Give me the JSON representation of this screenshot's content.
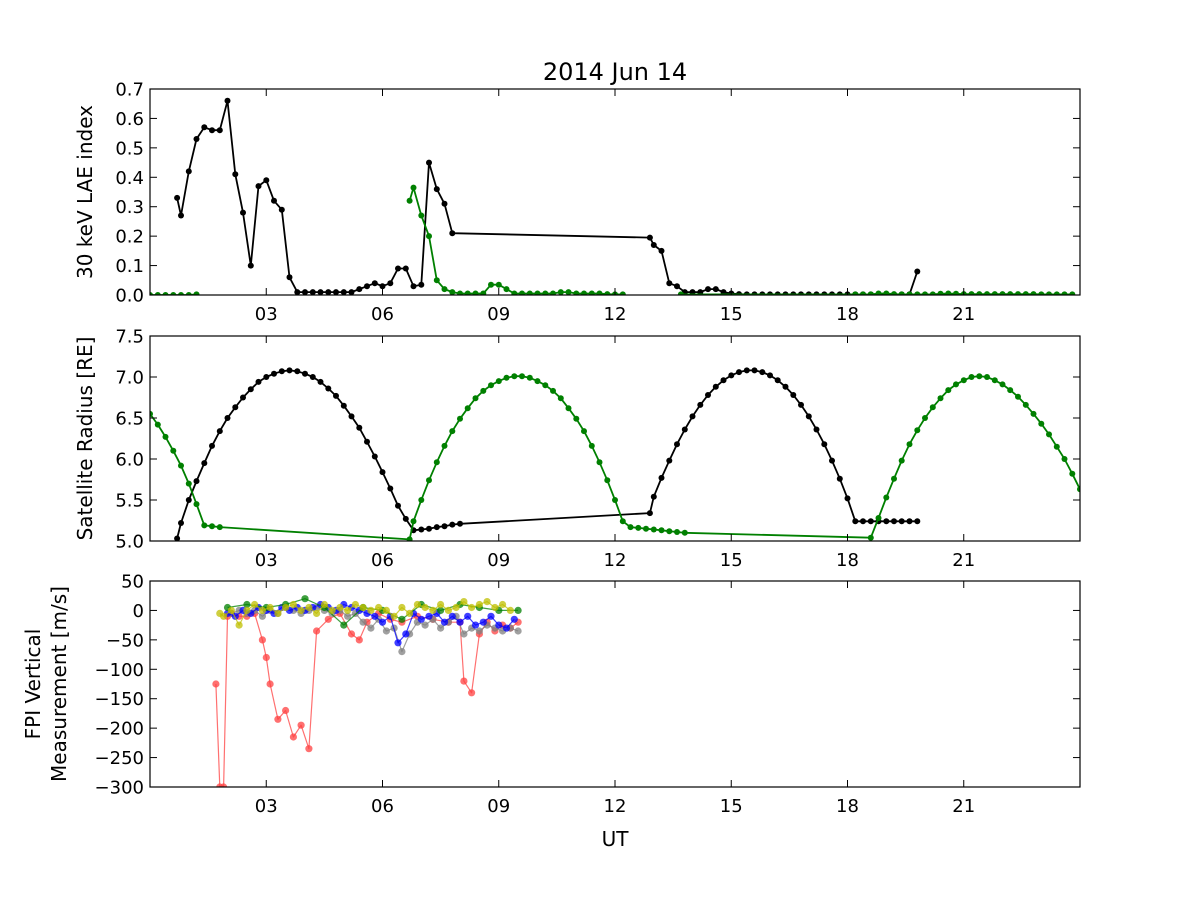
{
  "figure": {
    "title": "2014 Jun 14",
    "xlabel": "UT"
  },
  "chart_data": [
    {
      "type": "line",
      "ylabel": "30 keV LAE index",
      "xlim": [
        0,
        24
      ],
      "ylim": [
        0,
        0.7
      ],
      "xticks": [
        3,
        6,
        9,
        12,
        15,
        18,
        21
      ],
      "xticklabels": [
        "03",
        "06",
        "09",
        "12",
        "15",
        "18",
        "21"
      ],
      "yticks": [
        0,
        0.1,
        0.2,
        0.3,
        0.4,
        0.5,
        0.6,
        0.7
      ],
      "yticklabels": [
        "0.0",
        "0.1",
        "0.2",
        "0.3",
        "0.4",
        "0.5",
        "0.6",
        "0.7"
      ],
      "series": [
        {
          "color": "#000000",
          "x": [
            0.7,
            0.8,
            1.0,
            1.2,
            1.4,
            1.6,
            1.8,
            2.0,
            2.2,
            2.4,
            2.6,
            2.8,
            3.0,
            3.2,
            3.4,
            3.6,
            3.8,
            4.0,
            4.2,
            4.4,
            4.6,
            4.8,
            5.0,
            5.2,
            5.4,
            5.6,
            5.8,
            6.0,
            6.2,
            6.4,
            6.6,
            6.8,
            7.0,
            7.2,
            7.4,
            7.6,
            7.8,
            12.9,
            13.0,
            13.2,
            13.4,
            13.6,
            13.8,
            14.0,
            14.2,
            14.4,
            14.6,
            14.8,
            15.0,
            15.2,
            15.4,
            15.6,
            15.8,
            16.0,
            16.2,
            16.4,
            16.6,
            16.8,
            17.0,
            17.2,
            17.4,
            17.6,
            17.8,
            18.0,
            18.2,
            18.4,
            18.6,
            18.8,
            19.0,
            19.2,
            19.4,
            19.6,
            19.8
          ],
          "y": [
            0.33,
            0.27,
            0.42,
            0.53,
            0.57,
            0.56,
            0.56,
            0.66,
            0.41,
            0.28,
            0.1,
            0.37,
            0.39,
            0.32,
            0.29,
            0.06,
            0.01,
            0.01,
            0.01,
            0.01,
            0.01,
            0.01,
            0.01,
            0.01,
            0.02,
            0.03,
            0.04,
            0.03,
            0.04,
            0.09,
            0.09,
            0.03,
            0.035,
            0.45,
            0.36,
            0.31,
            0.21,
            0.195,
            0.17,
            0.15,
            0.04,
            0.03,
            0.01,
            0.01,
            0.01,
            0.02,
            0.02,
            0.01,
            0.005,
            0.003,
            0.002,
            0.002,
            0.002,
            0.002,
            0.002,
            0.002,
            0.002,
            0.002,
            0.002,
            0.002,
            0.002,
            0.002,
            0.002,
            0.002,
            0.002,
            0.002,
            0.002,
            0.002,
            0.002,
            0.002,
            0.002,
            0.002,
            0.08
          ]
        },
        {
          "color": "#008000",
          "segments": [
            {
              "x": [
                0.0,
                0.2,
                0.4,
                0.6,
                0.8,
                1.0,
                1.2
              ],
              "y": [
                0.0,
                0.0,
                0.0,
                0.0,
                0.0,
                0.0,
                0.002
              ]
            },
            {
              "x": [
                6.7,
                6.8,
                7.0,
                7.2,
                7.4,
                7.6,
                7.8,
                8.0,
                8.2,
                8.4,
                8.6,
                8.8,
                9.0,
                9.2,
                9.4,
                9.6,
                9.8,
                10.0,
                10.2,
                10.4,
                10.6,
                10.8,
                11.0,
                11.2,
                11.4,
                11.6,
                11.8,
                12.0,
                12.2
              ],
              "y": [
                0.32,
                0.365,
                0.27,
                0.2,
                0.05,
                0.02,
                0.01,
                0.005,
                0.005,
                0.005,
                0.005,
                0.035,
                0.035,
                0.02,
                0.005,
                0.005,
                0.005,
                0.005,
                0.005,
                0.005,
                0.01,
                0.01,
                0.005,
                0.005,
                0.005,
                0.005,
                0.003,
                0.002,
                0.002
              ]
            },
            {
              "x": [
                13.7,
                18.2,
                18.4,
                18.6,
                18.8,
                19.0,
                19.2,
                19.4,
                19.6,
                19.8,
                20.0,
                20.2,
                20.4,
                20.6,
                20.8,
                21.0,
                21.2,
                21.4,
                21.6,
                21.8,
                22.0,
                22.2,
                22.4,
                22.6,
                22.8,
                23.0,
                23.2,
                23.4,
                23.6,
                23.8
              ],
              "y": [
                0.002,
                0.002,
                0.002,
                0.002,
                0.005,
                0.005,
                0.003,
                0.002,
                0.002,
                0.002,
                0.002,
                0.002,
                0.004,
                0.005,
                0.004,
                0.003,
                0.003,
                0.003,
                0.003,
                0.003,
                0.003,
                0.003,
                0.003,
                0.003,
                0.003,
                0.002,
                0.002,
                0.002,
                0.002,
                0.002
              ]
            }
          ]
        }
      ]
    },
    {
      "type": "line",
      "ylabel": "Satellite Radius [RE]",
      "xlim": [
        0,
        24
      ],
      "ylim": [
        5.0,
        7.5
      ],
      "xticks": [
        3,
        6,
        9,
        12,
        15,
        18,
        21
      ],
      "xticklabels": [
        "03",
        "06",
        "09",
        "12",
        "15",
        "18",
        "21"
      ],
      "yticks": [
        5.0,
        5.5,
        6.0,
        6.5,
        7.0,
        7.5
      ],
      "yticklabels": [
        "5.0",
        "5.5",
        "6.0",
        "6.5",
        "7.0",
        "7.5"
      ],
      "series": [
        {
          "color": "#000000",
          "x": [
            0.7,
            0.8,
            1.0,
            1.2,
            1.4,
            1.6,
            1.8,
            2.0,
            2.2,
            2.4,
            2.6,
            2.8,
            3.0,
            3.2,
            3.4,
            3.6,
            3.8,
            4.0,
            4.2,
            4.4,
            4.6,
            4.8,
            5.0,
            5.2,
            5.4,
            5.6,
            5.8,
            6.0,
            6.2,
            6.4,
            6.6,
            6.8,
            7.0,
            7.2,
            7.4,
            7.6,
            7.8,
            8.0,
            12.9,
            13.0,
            13.2,
            13.4,
            13.6,
            13.8,
            14.0,
            14.2,
            14.4,
            14.6,
            14.8,
            15.0,
            15.2,
            15.4,
            15.6,
            15.8,
            16.0,
            16.2,
            16.4,
            16.6,
            16.8,
            17.0,
            17.2,
            17.4,
            17.6,
            17.8,
            18.0,
            18.2,
            18.4,
            18.6,
            18.8,
            19.0,
            19.2,
            19.4,
            19.6,
            19.8
          ],
          "y": [
            5.03,
            5.22,
            5.5,
            5.73,
            5.95,
            6.16,
            6.34,
            6.5,
            6.63,
            6.75,
            6.85,
            6.94,
            7.0,
            7.04,
            7.07,
            7.08,
            7.07,
            7.04,
            7.0,
            6.94,
            6.86,
            6.77,
            6.65,
            6.52,
            6.38,
            6.21,
            6.03,
            5.84,
            5.64,
            5.43,
            5.27,
            5.13,
            5.14,
            5.15,
            5.17,
            5.18,
            5.2,
            5.21,
            5.34,
            5.54,
            5.77,
            5.98,
            6.18,
            6.36,
            6.52,
            6.66,
            6.78,
            6.88,
            6.96,
            7.02,
            7.06,
            7.08,
            7.08,
            7.06,
            7.02,
            6.96,
            6.88,
            6.78,
            6.66,
            6.52,
            6.36,
            6.18,
            5.98,
            5.76,
            5.52,
            5.24,
            5.24,
            5.24,
            5.24,
            5.24,
            5.24,
            5.24,
            5.24,
            5.24
          ]
        },
        {
          "color": "#008000",
          "x": [
            0.0,
            0.2,
            0.4,
            0.6,
            0.8,
            1.0,
            1.2,
            1.4,
            1.6,
            1.8,
            6.7,
            6.8,
            7.0,
            7.2,
            7.4,
            7.6,
            7.8,
            8.0,
            8.2,
            8.4,
            8.6,
            8.8,
            9.0,
            9.2,
            9.4,
            9.6,
            9.8,
            10.0,
            10.2,
            10.4,
            10.6,
            10.8,
            11.0,
            11.2,
            11.4,
            11.6,
            11.8,
            12.0,
            12.2,
            12.4,
            12.6,
            12.8,
            13.0,
            13.2,
            13.4,
            13.6,
            13.8,
            18.6,
            18.8,
            19.0,
            19.2,
            19.4,
            19.6,
            19.8,
            20.0,
            20.2,
            20.4,
            20.6,
            20.8,
            21.0,
            21.2,
            21.4,
            21.6,
            21.8,
            22.0,
            22.2,
            22.4,
            22.6,
            22.8,
            23.0,
            23.2,
            23.4,
            23.6,
            23.8,
            24.0
          ],
          "y": [
            6.55,
            6.42,
            6.27,
            6.1,
            5.92,
            5.7,
            5.45,
            5.19,
            5.18,
            5.17,
            5.02,
            5.24,
            5.5,
            5.74,
            5.96,
            6.16,
            6.34,
            6.49,
            6.62,
            6.74,
            6.83,
            6.9,
            6.95,
            6.99,
            7.01,
            7.01,
            6.99,
            6.95,
            6.9,
            6.83,
            6.74,
            6.62,
            6.49,
            6.34,
            6.16,
            5.96,
            5.74,
            5.5,
            5.24,
            5.17,
            5.16,
            5.15,
            5.14,
            5.13,
            5.12,
            5.11,
            5.1,
            5.04,
            5.28,
            5.53,
            5.76,
            5.98,
            6.18,
            6.35,
            6.5,
            6.63,
            6.74,
            6.84,
            6.91,
            6.96,
            7.0,
            7.01,
            7.0,
            6.96,
            6.91,
            6.84,
            6.76,
            6.66,
            6.55,
            6.43,
            6.3,
            6.15,
            6.0,
            5.82,
            5.63
          ]
        }
      ]
    },
    {
      "type": "line",
      "ylabel": "FPI Vertical Measurement [m/s]",
      "xlim": [
        0,
        24
      ],
      "ylim": [
        -300,
        50
      ],
      "xticks": [
        3,
        6,
        9,
        12,
        15,
        18,
        21
      ],
      "xticklabels": [
        "03",
        "06",
        "09",
        "12",
        "15",
        "18",
        "21"
      ],
      "yticks": [
        -300,
        -250,
        -200,
        -150,
        -100,
        -50,
        0,
        50
      ],
      "yticklabels": [
        "−300",
        "−250",
        "−200",
        "−150",
        "−100",
        "−50",
        "0",
        "50"
      ],
      "series": [
        {
          "color": "#ff4040",
          "x": [
            1.7,
            1.8,
            1.9,
            2.0,
            2.1,
            2.3,
            2.5,
            2.7,
            2.9,
            3.0,
            3.1,
            3.3,
            3.5,
            3.7,
            3.9,
            4.1,
            4.3,
            4.6,
            4.9,
            5.2,
            5.4,
            5.6,
            5.9,
            6.2,
            6.5,
            6.9,
            7.3,
            7.7,
            8.0,
            8.1,
            8.3,
            8.5,
            8.7,
            8.9,
            9.1,
            9.3,
            9.5
          ],
          "y": [
            -125,
            -300,
            -300,
            -10,
            -5,
            -10,
            -10,
            -5,
            -50,
            -80,
            -125,
            -185,
            -170,
            -215,
            -195,
            -235,
            -35,
            -15,
            -5,
            -40,
            -50,
            -20,
            -5,
            -15,
            -20,
            -10,
            -15,
            -20,
            -20,
            -120,
            -140,
            -40,
            -20,
            -35,
            -25,
            -30,
            -20
          ]
        },
        {
          "color": "#808080",
          "x": [
            2.1,
            2.3,
            2.5,
            2.7,
            2.9,
            3.1,
            3.3,
            3.5,
            3.7,
            3.9,
            4.1,
            4.3,
            4.5,
            4.7,
            4.9,
            5.1,
            5.3,
            5.5,
            5.7,
            5.9,
            6.1,
            6.3,
            6.5,
            6.7,
            6.9,
            7.1,
            7.3,
            7.5,
            7.7,
            7.9,
            8.1,
            8.3,
            8.5,
            8.7,
            8.9,
            9.1,
            9.3,
            9.5
          ],
          "y": [
            -5,
            0,
            -5,
            0,
            -10,
            0,
            -5,
            5,
            0,
            -5,
            0,
            5,
            0,
            -5,
            0,
            -10,
            -5,
            -20,
            -30,
            -15,
            -35,
            -30,
            -70,
            -40,
            -20,
            -25,
            -15,
            -30,
            -20,
            -10,
            -40,
            -30,
            -35,
            -25,
            -30,
            -35,
            -30,
            -35
          ]
        },
        {
          "color": "#0000ff",
          "x": [
            2.0,
            2.2,
            2.4,
            2.6,
            2.8,
            3.0,
            3.2,
            3.4,
            3.6,
            3.8,
            4.0,
            4.2,
            4.4,
            4.6,
            4.8,
            5.0,
            5.2,
            5.4,
            5.6,
            5.8,
            6.0,
            6.2,
            6.4,
            6.6,
            6.8,
            7.0,
            7.2,
            7.4,
            7.6,
            7.8,
            8.0,
            8.2,
            8.4,
            8.6,
            8.8,
            9.0,
            9.2,
            9.4
          ],
          "y": [
            -5,
            -10,
            0,
            -5,
            5,
            0,
            -5,
            5,
            0,
            5,
            0,
            5,
            10,
            5,
            0,
            10,
            5,
            0,
            -5,
            -10,
            -20,
            -10,
            -55,
            -40,
            -5,
            -15,
            -10,
            -5,
            -20,
            -10,
            -20,
            -10,
            -25,
            -20,
            -10,
            -25,
            -30,
            -15
          ]
        },
        {
          "color": "#008000",
          "x": [
            2.0,
            2.5,
            3.0,
            3.5,
            4.0,
            4.5,
            5.0,
            5.5,
            6.0,
            6.5,
            7.0,
            7.5,
            8.0,
            8.5,
            9.0,
            9.5
          ],
          "y": [
            5,
            10,
            5,
            10,
            20,
            5,
            -25,
            5,
            0,
            -15,
            10,
            0,
            10,
            5,
            0,
            0
          ]
        },
        {
          "color": "#bfbf00",
          "x": [
            1.8,
            1.9,
            2.1,
            2.3,
            2.5,
            2.7,
            2.9,
            3.1,
            3.3,
            3.5,
            3.7,
            3.9,
            4.1,
            4.3,
            4.5,
            4.7,
            4.9,
            5.1,
            5.3,
            5.5,
            5.7,
            5.9,
            6.1,
            6.3,
            6.5,
            6.7,
            6.9,
            7.1,
            7.3,
            7.5,
            7.7,
            7.9,
            8.1,
            8.3,
            8.5,
            8.7,
            8.9,
            9.1,
            9.3
          ],
          "y": [
            -5,
            -10,
            0,
            -25,
            0,
            10,
            0,
            5,
            -5,
            5,
            10,
            0,
            5,
            -5,
            10,
            0,
            5,
            0,
            10,
            5,
            0,
            5,
            0,
            -10,
            5,
            -5,
            10,
            5,
            0,
            10,
            0,
            5,
            15,
            5,
            10,
            15,
            5,
            10,
            0
          ]
        }
      ]
    }
  ]
}
